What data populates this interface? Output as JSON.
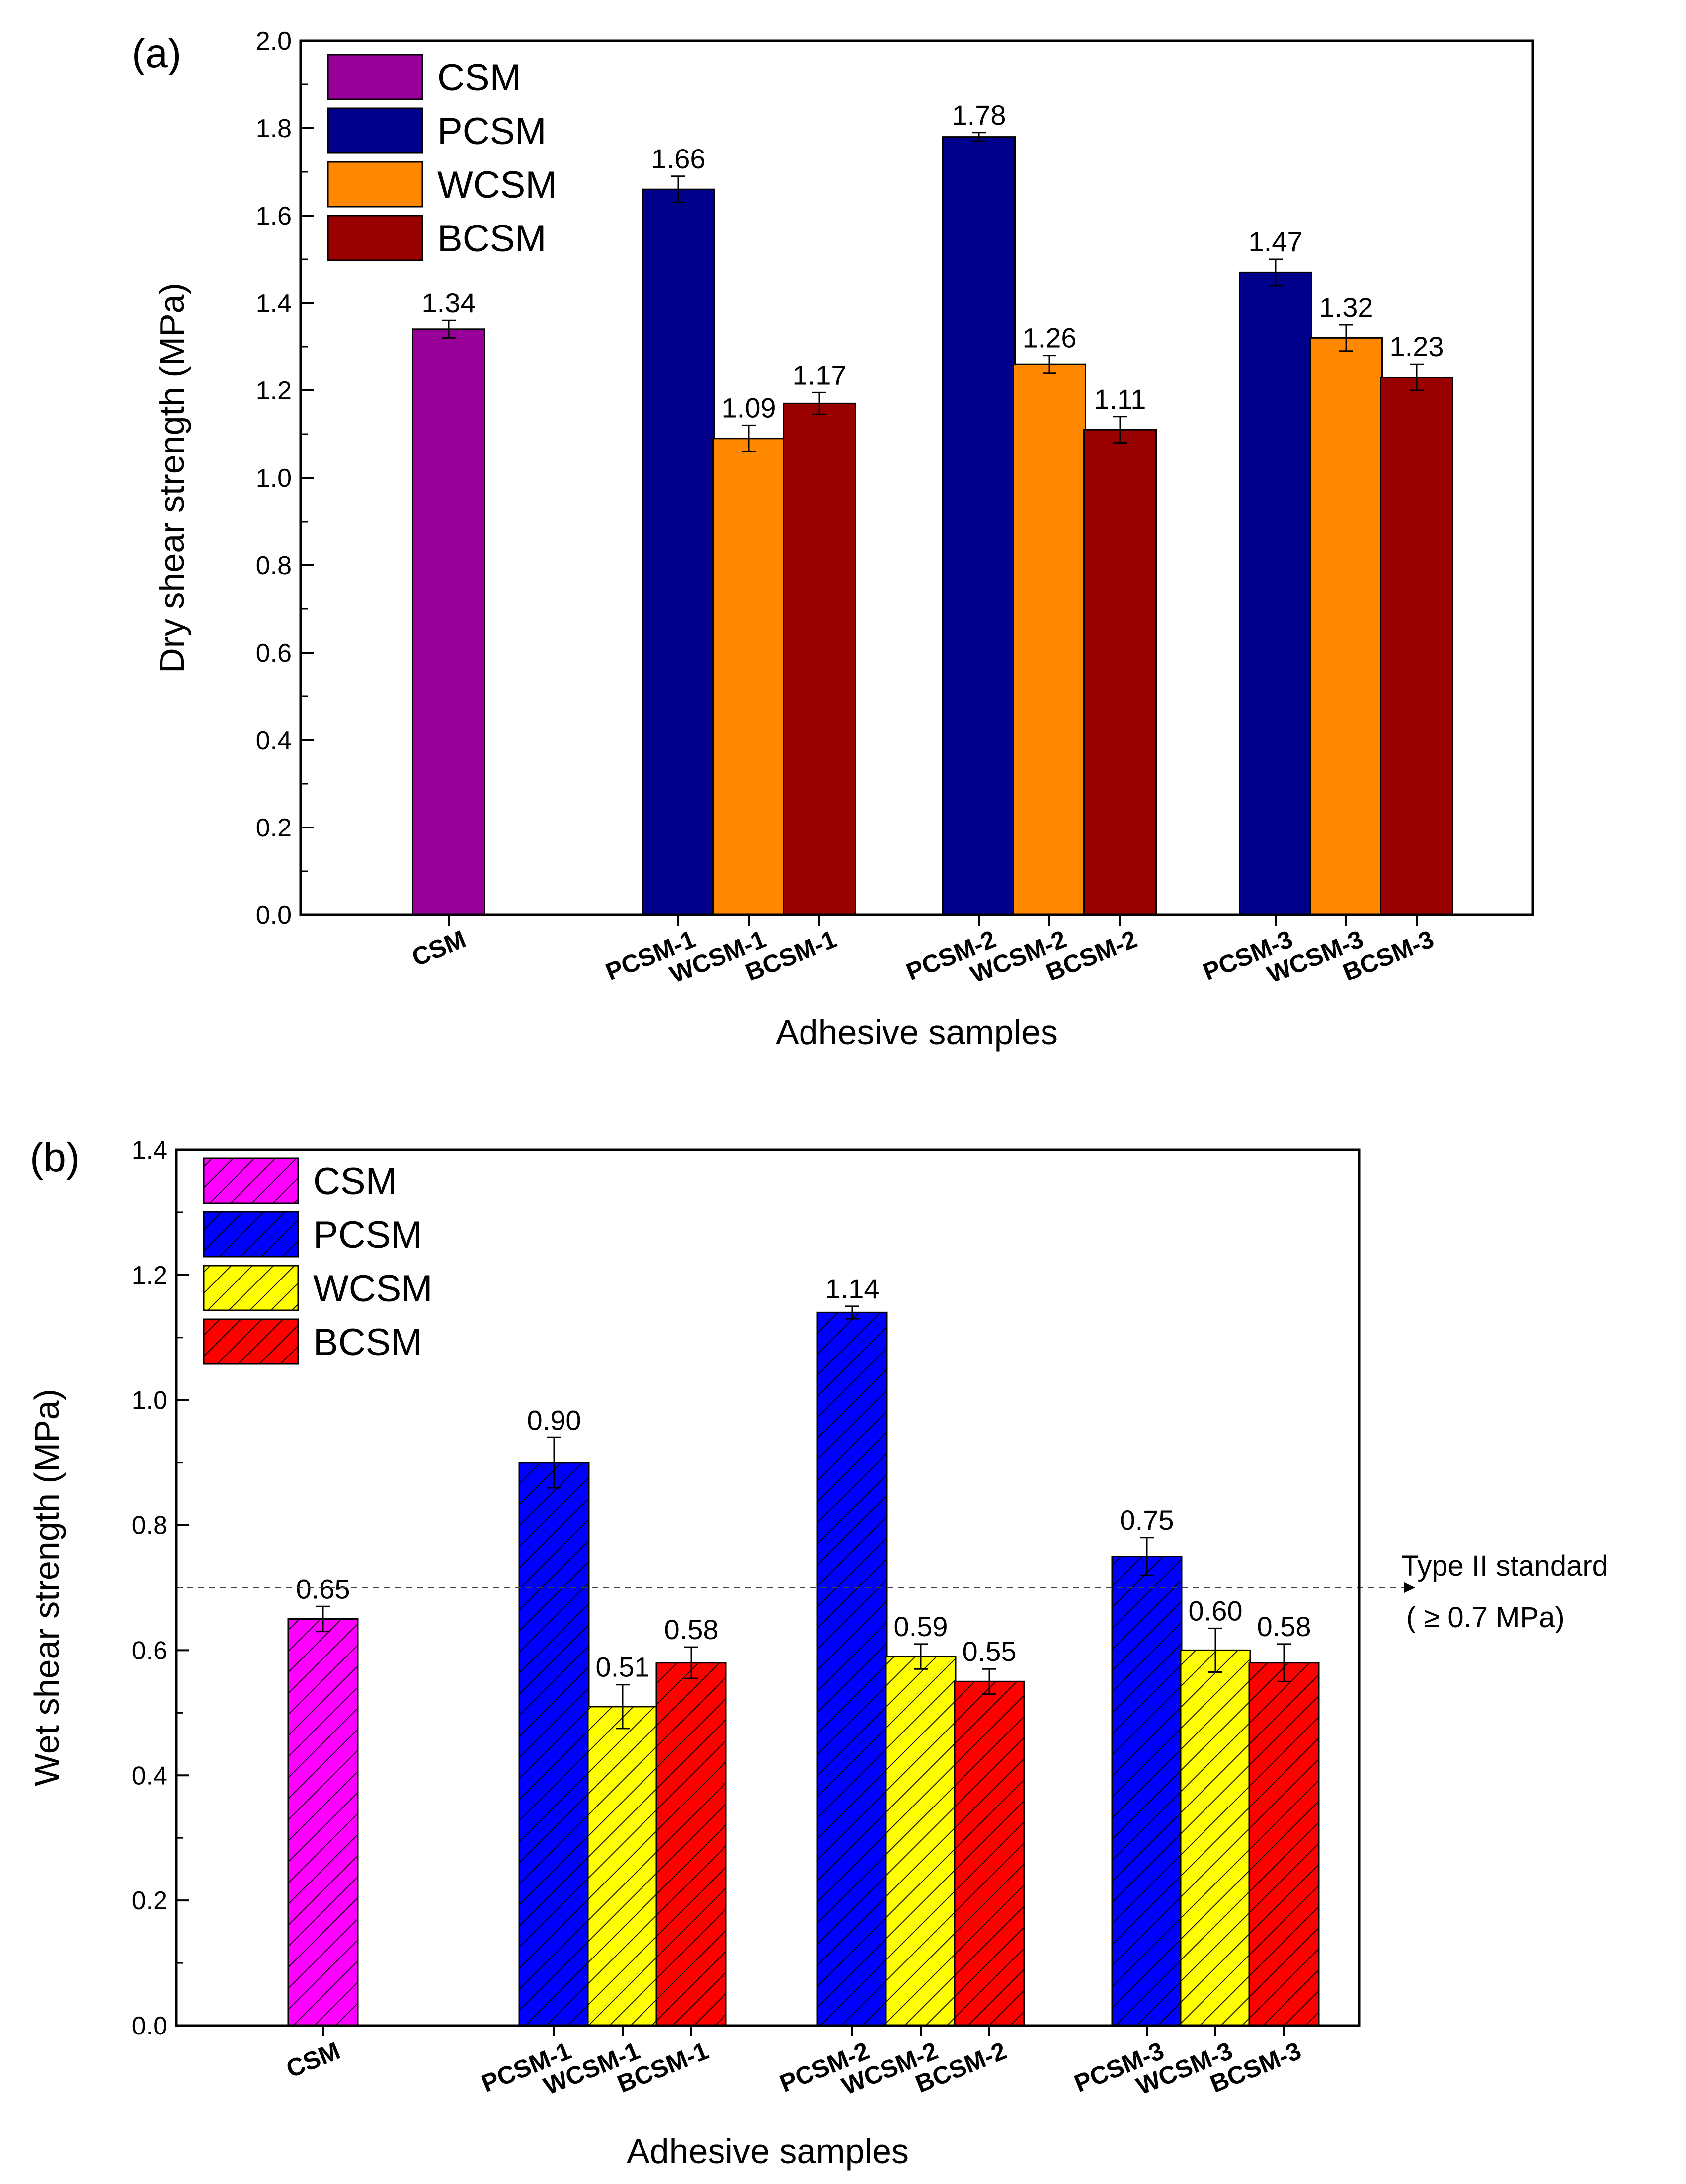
{
  "chart_data": [
    {
      "type": "bar",
      "panel_label": "(a)",
      "xlabel": "Adhesive samples",
      "ylabel": "Dry shear strength (MPa)",
      "ylim": [
        0,
        2.0
      ],
      "yticks": [
        "0.0",
        "0.2",
        "0.4",
        "0.6",
        "0.8",
        "1.0",
        "1.2",
        "1.4",
        "1.6",
        "1.8",
        "2.0"
      ],
      "legend_position": "top-left",
      "hatched": false,
      "series": [
        {
          "name": "CSM",
          "color": "#990099"
        },
        {
          "name": "PCSM",
          "color": "#00008b"
        },
        {
          "name": "WCSM",
          "color": "#ff8800"
        },
        {
          "name": "BCSM",
          "color": "#990000"
        }
      ],
      "bars": [
        {
          "category": "CSM",
          "series": 0,
          "value": 1.34,
          "error": 0.02,
          "label": "1.34"
        },
        {
          "category": "PCSM-1",
          "series": 1,
          "value": 1.66,
          "error": 0.03,
          "label": "1.66"
        },
        {
          "category": "WCSM-1",
          "series": 2,
          "value": 1.09,
          "error": 0.03,
          "label": "1.09"
        },
        {
          "category": "BCSM-1",
          "series": 3,
          "value": 1.17,
          "error": 0.025,
          "label": "1.17"
        },
        {
          "category": "PCSM-2",
          "series": 1,
          "value": 1.78,
          "error": 0.01,
          "label": "1.78"
        },
        {
          "category": "WCSM-2",
          "series": 2,
          "value": 1.26,
          "error": 0.02,
          "label": "1.26"
        },
        {
          "category": "BCSM-2",
          "series": 3,
          "value": 1.11,
          "error": 0.03,
          "label": "1.11"
        },
        {
          "category": "PCSM-3",
          "series": 1,
          "value": 1.47,
          "error": 0.03,
          "label": "1.47"
        },
        {
          "category": "WCSM-3",
          "series": 2,
          "value": 1.32,
          "error": 0.03,
          "label": "1.32"
        },
        {
          "category": "BCSM-3",
          "series": 3,
          "value": 1.23,
          "error": 0.03,
          "label": "1.23"
        }
      ]
    },
    {
      "type": "bar",
      "panel_label": "(b)",
      "xlabel": "Adhesive samples",
      "ylabel": "Wet shear strength (MPa)",
      "ylim": [
        0,
        1.4
      ],
      "yticks": [
        "0.0",
        "0.2",
        "0.4",
        "0.6",
        "0.8",
        "1.0",
        "1.2",
        "1.4"
      ],
      "legend_position": "top-left",
      "hatched": true,
      "series": [
        {
          "name": "CSM",
          "color": "#ff00ff"
        },
        {
          "name": "PCSM",
          "color": "#0000ff"
        },
        {
          "name": "WCSM",
          "color": "#ffff00"
        },
        {
          "name": "BCSM",
          "color": "#ff0000"
        }
      ],
      "bars": [
        {
          "category": "CSM",
          "series": 0,
          "value": 0.65,
          "error": 0.02,
          "label": "0.65"
        },
        {
          "category": "PCSM-1",
          "series": 1,
          "value": 0.9,
          "error": 0.04,
          "label": "0.90"
        },
        {
          "category": "WCSM-1",
          "series": 2,
          "value": 0.51,
          "error": 0.035,
          "label": "0.51"
        },
        {
          "category": "BCSM-1",
          "series": 3,
          "value": 0.58,
          "error": 0.025,
          "label": "0.58"
        },
        {
          "category": "PCSM-2",
          "series": 1,
          "value": 1.14,
          "error": 0.01,
          "label": "1.14"
        },
        {
          "category": "WCSM-2",
          "series": 2,
          "value": 0.59,
          "error": 0.02,
          "label": "0.59"
        },
        {
          "category": "BCSM-2",
          "series": 3,
          "value": 0.55,
          "error": 0.02,
          "label": "0.55"
        },
        {
          "category": "PCSM-3",
          "series": 1,
          "value": 0.75,
          "error": 0.03,
          "label": "0.75"
        },
        {
          "category": "WCSM-3",
          "series": 2,
          "value": 0.6,
          "error": 0.035,
          "label": "0.60"
        },
        {
          "category": "BCSM-3",
          "series": 3,
          "value": 0.58,
          "error": 0.03,
          "label": "0.58"
        }
      ],
      "reference_line": {
        "value": 0.7,
        "label_line1": "Type II standard",
        "label_line2": "( ≥ 0.7 MPa)"
      }
    }
  ]
}
